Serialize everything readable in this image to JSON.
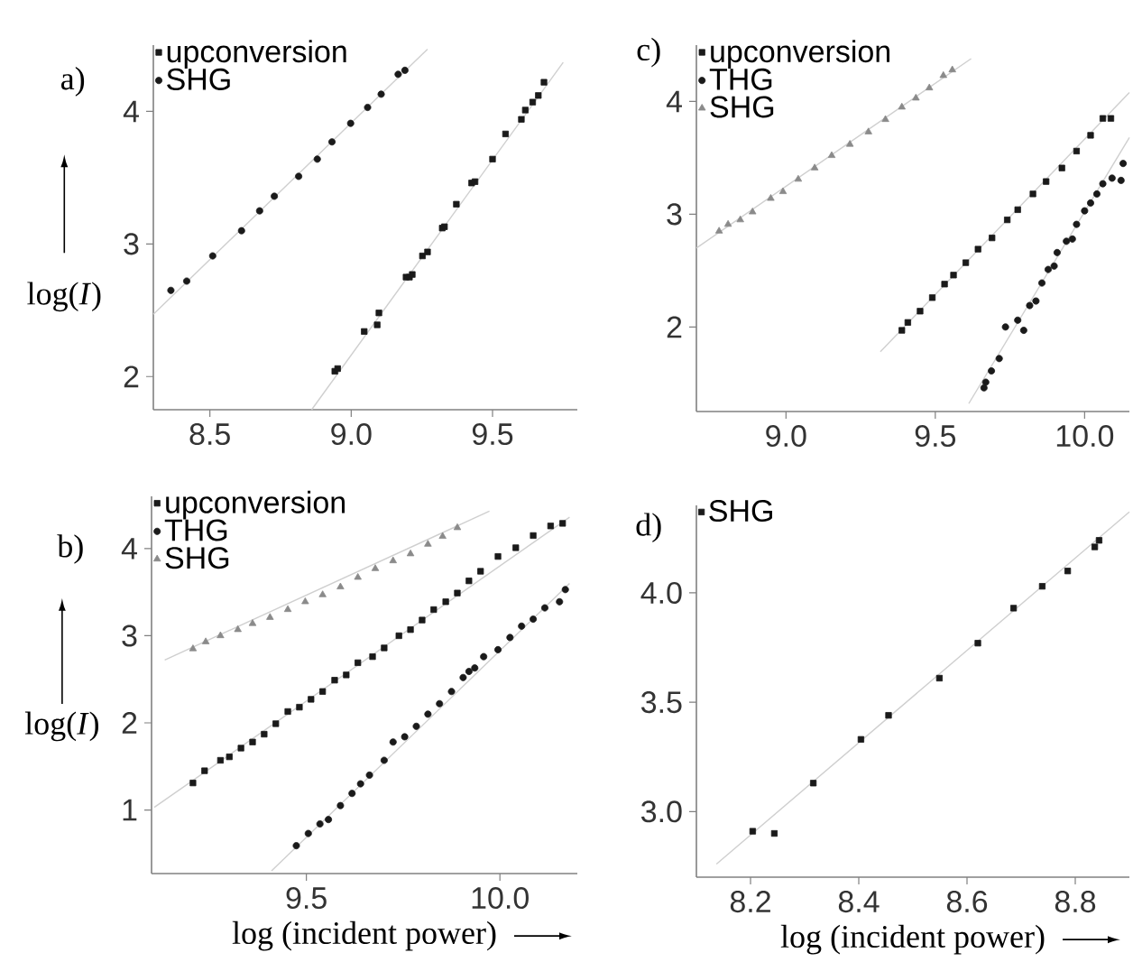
{
  "chart_data": [
    {
      "type": "scatter",
      "ylabel": "log(*I*)",
      "annotations": [
        "a)"
      ],
      "legend": "top left",
      "xlim": [
        8.3,
        9.8
      ],
      "ylim": [
        1.75,
        4.5
      ],
      "xticks": [
        {
          "value": 8.5,
          "label": "8.5"
        },
        {
          "value": 9,
          "label": "9.0"
        },
        {
          "value": 9.5,
          "label": "9.5"
        }
      ],
      "yticks": [
        2,
        3,
        4
      ],
      "series": [
        {
          "name": "upconversion",
          "color": "#1a1a1a",
          "marker": "square",
          "x": [
            8.942,
            8.952,
            9.046,
            9.092,
            9.098,
            9.194,
            9.206,
            9.216,
            9.252,
            9.27,
            9.322,
            9.33,
            9.372,
            9.426,
            9.438,
            9.5,
            9.546,
            9.602,
            9.616,
            9.642,
            9.662,
            9.682
          ],
          "values": [
            2.04,
            2.06,
            2.34,
            2.39,
            2.48,
            2.75,
            2.75,
            2.77,
            2.91,
            2.94,
            3.12,
            3.13,
            3.3,
            3.46,
            3.47,
            3.64,
            3.83,
            3.94,
            4.01,
            4.07,
            4.12,
            4.22
          ]
        },
        {
          "name": "SHG",
          "color": "#1a1a1a",
          "marker": "circle",
          "x": [
            8.362,
            8.418,
            8.51,
            8.612,
            8.676,
            8.728,
            8.814,
            8.88,
            8.932,
            8.998,
            9.058,
            9.106,
            9.166,
            9.19
          ],
          "values": [
            2.65,
            2.72,
            2.91,
            3.1,
            3.25,
            3.36,
            3.51,
            3.64,
            3.77,
            3.91,
            4.03,
            4.13,
            4.28,
            4.31
          ]
        },
        {
          "type": "line",
          "color": "#cfcfcf",
          "x": [
            8.3,
            9.27
          ],
          "values": [
            2.47,
            4.47
          ]
        },
        {
          "type": "line",
          "color": "#cfcfcf",
          "x": [
            8.86,
            9.75
          ],
          "values": [
            1.75,
            4.37
          ]
        }
      ]
    },
    {
      "type": "scatter",
      "annotations": [
        "c)"
      ],
      "legend": "top left",
      "xlim": [
        8.7,
        10.15
      ],
      "ylim": [
        1.25,
        4.5
      ],
      "xticks": [
        {
          "value": 9,
          "label": "9.0"
        },
        {
          "value": 9.5,
          "label": "9.5"
        },
        {
          "value": 10,
          "label": "10.0"
        }
      ],
      "yticks": [
        2,
        3,
        4
      ],
      "series": [
        {
          "name": "upconversion",
          "color": "#1a1a1a",
          "marker": "square",
          "x": [
            9.388,
            9.408,
            9.449,
            9.49,
            9.531,
            9.561,
            9.602,
            9.643,
            9.69,
            9.741,
            9.776,
            9.827,
            9.871,
            9.924,
            9.973,
            10.02,
            10.061,
            10.088
          ],
          "values": [
            1.97,
            2.04,
            2.14,
            2.26,
            2.38,
            2.46,
            2.57,
            2.69,
            2.79,
            2.95,
            3.04,
            3.18,
            3.29,
            3.41,
            3.56,
            3.7,
            3.85,
            3.85
          ]
        },
        {
          "name": "THG",
          "color": "#1a1a1a",
          "marker": "circle",
          "x": [
            9.663,
            9.669,
            9.688,
            9.714,
            9.735,
            9.776,
            9.796,
            9.816,
            9.837,
            9.857,
            9.878,
            9.898,
            9.908,
            9.939,
            9.959,
            9.973,
            10.0,
            10.02,
            10.041,
            10.061,
            10.092,
            10.122,
            10.129
          ],
          "values": [
            1.46,
            1.51,
            1.61,
            1.72,
            2.0,
            2.06,
            1.97,
            2.19,
            2.23,
            2.39,
            2.51,
            2.54,
            2.66,
            2.76,
            2.78,
            2.91,
            3.03,
            3.1,
            3.18,
            3.27,
            3.32,
            3.3,
            3.45
          ]
        },
        {
          "name": "SHG",
          "color": "#8a8a8a",
          "marker": "triangle",
          "x": [
            8.776,
            8.806,
            8.847,
            8.888,
            8.949,
            8.99,
            9.041,
            9.096,
            9.153,
            9.214,
            9.276,
            9.333,
            9.388,
            9.435,
            9.48,
            9.527,
            9.557
          ],
          "values": [
            2.85,
            2.91,
            2.95,
            3.02,
            3.14,
            3.2,
            3.31,
            3.41,
            3.52,
            3.62,
            3.73,
            3.84,
            3.95,
            4.03,
            4.12,
            4.23,
            4.28
          ]
        },
        {
          "type": "line",
          "color": "#cfcfcf",
          "x": [
            8.7,
            9.62
          ],
          "values": [
            2.7,
            4.38
          ]
        },
        {
          "type": "line",
          "color": "#cfcfcf",
          "x": [
            9.316,
            10.15
          ],
          "values": [
            1.78,
            4.08
          ]
        },
        {
          "type": "line",
          "color": "#cfcfcf",
          "x": [
            9.612,
            10.15
          ],
          "values": [
            1.32,
            3.68
          ]
        }
      ]
    },
    {
      "type": "scatter",
      "xlabel": "log (incident power)",
      "ylabel": "log(*I*)",
      "annotations": [
        "b)"
      ],
      "legend": "top left",
      "xlim": [
        9.1,
        10.2
      ],
      "ylim": [
        0.27,
        4.6
      ],
      "xticks": [
        {
          "value": 9.5,
          "label": "9.5"
        },
        {
          "value": 10,
          "label": "10.0"
        }
      ],
      "yticks": [
        1,
        2,
        3,
        4
      ],
      "series": [
        {
          "name": "upconversion",
          "color": "#1a1a1a",
          "marker": "square",
          "x": [
            9.207,
            9.237,
            9.278,
            9.301,
            9.331,
            9.361,
            9.391,
            9.421,
            9.452,
            9.482,
            9.512,
            9.542,
            9.573,
            9.603,
            9.633,
            9.671,
            9.701,
            9.739,
            9.769,
            9.799,
            9.829,
            9.86,
            9.89,
            9.92,
            9.95,
            9.995,
            10.041,
            10.086,
            10.131,
            10.162
          ],
          "values": [
            1.31,
            1.45,
            1.57,
            1.61,
            1.71,
            1.78,
            1.87,
            1.99,
            2.13,
            2.18,
            2.27,
            2.36,
            2.49,
            2.55,
            2.69,
            2.76,
            2.86,
            3.0,
            3.07,
            3.18,
            3.3,
            3.39,
            3.49,
            3.63,
            3.74,
            3.91,
            4.01,
            4.15,
            4.26,
            4.29
          ]
        },
        {
          "name": "THG",
          "color": "#1a1a1a",
          "marker": "circle",
          "x": [
            9.474,
            9.505,
            9.535,
            9.557,
            9.588,
            9.618,
            9.64,
            9.663,
            9.701,
            9.724,
            9.754,
            9.784,
            9.814,
            9.844,
            9.875,
            9.905,
            9.92,
            9.935,
            9.958,
            9.995,
            10.026,
            10.056,
            10.086,
            10.116,
            10.154,
            10.169
          ],
          "values": [
            0.59,
            0.73,
            0.84,
            0.89,
            1.05,
            1.19,
            1.3,
            1.4,
            1.57,
            1.78,
            1.84,
            1.96,
            2.1,
            2.22,
            2.36,
            2.52,
            2.59,
            2.63,
            2.76,
            2.84,
            2.98,
            3.11,
            3.19,
            3.32,
            3.39,
            3.53
          ]
        },
        {
          "name": "SHG",
          "color": "#8a8a8a",
          "marker": "triangle",
          "x": [
            9.207,
            9.24,
            9.278,
            9.323,
            9.361,
            9.406,
            9.452,
            9.497,
            9.542,
            9.588,
            9.633,
            9.678,
            9.724,
            9.769,
            9.814,
            9.852,
            9.89
          ],
          "values": [
            2.85,
            2.93,
            3.0,
            3.07,
            3.14,
            3.21,
            3.3,
            3.39,
            3.47,
            3.56,
            3.67,
            3.77,
            3.86,
            3.94,
            4.05,
            4.14,
            4.24
          ]
        },
        {
          "type": "line",
          "color": "#cfcfcf",
          "x": [
            9.134,
            9.973
          ],
          "values": [
            2.72,
            4.43
          ]
        },
        {
          "type": "line",
          "color": "#cfcfcf",
          "x": [
            9.107,
            10.18
          ],
          "values": [
            1.03,
            4.36
          ]
        },
        {
          "type": "line",
          "color": "#cfcfcf",
          "x": [
            9.41,
            10.18
          ],
          "values": [
            0.3,
            3.6
          ]
        }
      ]
    },
    {
      "type": "scatter",
      "xlabel": "log (incident power)",
      "annotations": [
        "d)"
      ],
      "legend": "top left",
      "xlim": [
        8.1,
        8.9
      ],
      "ylim": [
        2.7,
        4.4
      ],
      "xticks": [
        8.2,
        8.4,
        8.6,
        8.8
      ],
      "yticks": [
        {
          "value": 3,
          "label": "3.0"
        },
        {
          "value": 3.5,
          "label": "3.5"
        },
        {
          "value": 4,
          "label": "4.0"
        }
      ],
      "series": [
        {
          "name": "SHG",
          "color": "#1a1a1a",
          "marker": "square",
          "x": [
            8.204,
            8.244,
            8.316,
            8.404,
            8.455,
            8.549,
            8.62,
            8.686,
            8.739,
            8.786,
            8.836,
            8.844
          ],
          "values": [
            2.91,
            2.9,
            3.13,
            3.33,
            3.44,
            3.61,
            3.77,
            3.93,
            4.03,
            4.1,
            4.21,
            4.24
          ]
        },
        {
          "type": "line",
          "color": "#cfcfcf",
          "x": [
            8.137,
            8.9
          ],
          "values": [
            2.76,
            4.37
          ]
        }
      ]
    }
  ]
}
